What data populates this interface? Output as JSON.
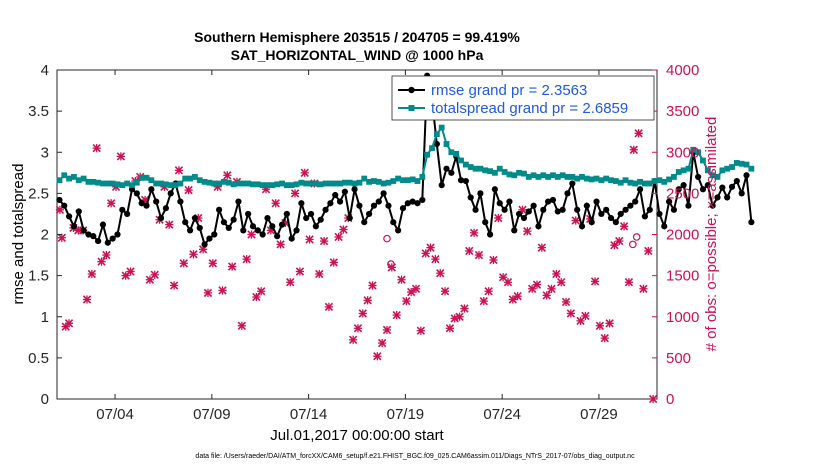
{
  "colors": {
    "rmse": "#000000",
    "totalspread": "#008b8b",
    "obs": "#cc1155",
    "legend_text": "#1f5bd6"
  },
  "chart_data": {
    "type": "line",
    "title_line1": "Southern Hemisphere 203515 / 204705 = 99.419%",
    "title_line2": "SAT_HORIZONTAL_WIND @ 1000 hPa",
    "xlabel": "Jul.01,2017 00:00:00 start",
    "ylabel_left": "rmse and totalspread",
    "ylabel_right": "# of obs: o=possible; ×=assimilated",
    "footnote": "data file: /Users/raeder/DAI/ATM_forcXX/CAM6_setup/f.e21.FHIST_BGC.f09_025.CAM6assim.011/Diags_NTrS_2017-07/obs_diag_output.nc",
    "x_range_days": [
      0,
      31
    ],
    "ylim_left": [
      0,
      4
    ],
    "ylim_right": [
      0,
      4000
    ],
    "x_ticks": [
      {
        "day": 3,
        "label": "07/04"
      },
      {
        "day": 8,
        "label": "07/09"
      },
      {
        "day": 13,
        "label": "07/14"
      },
      {
        "day": 18,
        "label": "07/19"
      },
      {
        "day": 23,
        "label": "07/24"
      },
      {
        "day": 28,
        "label": "07/29"
      }
    ],
    "y_ticks_left": [
      "0",
      "0.5",
      "1",
      "1.5",
      "2",
      "2.5",
      "3",
      "3.5",
      "4"
    ],
    "y_ticks_right": [
      "0",
      "500",
      "1000",
      "1500",
      "2000",
      "2500",
      "3000",
      "3500",
      "4000"
    ],
    "legend": [
      {
        "key": "rmse",
        "label": "rmse grand pr = 2.3563"
      },
      {
        "key": "totalspread",
        "label": "totalspread grand pr = 2.6859"
      }
    ],
    "series": [
      {
        "name": "rmse",
        "step_days": 0.25,
        "start_day": 0.125,
        "values": [
          2.42,
          2.35,
          2.22,
          2.1,
          2.28,
          2.05,
          2.0,
          1.98,
          1.92,
          2.12,
          1.9,
          1.95,
          2.0,
          2.3,
          2.25,
          2.55,
          2.5,
          2.38,
          2.35,
          2.55,
          2.4,
          2.2,
          2.32,
          2.5,
          2.62,
          2.4,
          2.15,
          2.05,
          2.2,
          2.08,
          1.88,
          1.95,
          2.0,
          2.3,
          2.15,
          2.08,
          2.18,
          2.4,
          2.05,
          2.25,
          2.1,
          2.05,
          2.0,
          2.2,
          2.1,
          1.98,
          2.12,
          2.25,
          1.95,
          2.05,
          2.38,
          2.2,
          2.25,
          2.1,
          2.18,
          2.3,
          2.38,
          2.48,
          2.4,
          2.52,
          2.2,
          2.55,
          2.35,
          2.15,
          2.25,
          2.35,
          2.4,
          2.5,
          2.35,
          2.15,
          2.05,
          2.32,
          2.38,
          2.4,
          2.38,
          2.42,
          3.93,
          3.65,
          3.1,
          2.6,
          2.8,
          2.75,
          2.95,
          2.66,
          2.65,
          2.45,
          2.3,
          2.5,
          2.15,
          2.0,
          2.55,
          2.38,
          2.3,
          2.4,
          2.05,
          2.25,
          2.2,
          2.28,
          2.35,
          2.1,
          2.3,
          2.4,
          2.42,
          2.28,
          2.3,
          2.5,
          2.62,
          2.3,
          2.1,
          2.35,
          2.15,
          2.4,
          2.25,
          2.3,
          2.2,
          2.15,
          2.25,
          2.3,
          2.35,
          2.4,
          2.55,
          2.22,
          2.3,
          2.65,
          2.25,
          2.1,
          2.4,
          2.3,
          2.55,
          2.6,
          2.35,
          3.0,
          2.7,
          2.55,
          2.6,
          2.35,
          2.45,
          2.57,
          2.45,
          2.58,
          2.65,
          2.5,
          2.72,
          2.15
        ]
      },
      {
        "name": "totalspread",
        "step_days": 0.25,
        "start_day": 0.125,
        "values": [
          2.66,
          2.72,
          2.68,
          2.7,
          2.66,
          2.68,
          2.64,
          2.64,
          2.63,
          2.62,
          2.62,
          2.62,
          2.61,
          2.6,
          2.62,
          2.6,
          2.63,
          2.69,
          2.69,
          2.66,
          2.62,
          2.62,
          2.61,
          2.6,
          2.6,
          2.62,
          2.68,
          2.68,
          2.7,
          2.66,
          2.64,
          2.63,
          2.62,
          2.62,
          2.64,
          2.63,
          2.61,
          2.62,
          2.62,
          2.62,
          2.61,
          2.61,
          2.6,
          2.6,
          2.6,
          2.61,
          2.62,
          2.6,
          2.6,
          2.61,
          2.63,
          2.62,
          2.62,
          2.62,
          2.61,
          2.62,
          2.62,
          2.62,
          2.62,
          2.63,
          2.63,
          2.62,
          2.63,
          2.68,
          2.64,
          2.65,
          2.64,
          2.62,
          2.63,
          2.65,
          2.68,
          2.66,
          2.66,
          2.67,
          2.65,
          2.7,
          2.97,
          3.05,
          3.22,
          3.3,
          3.1,
          3.0,
          2.98,
          2.9,
          2.85,
          2.82,
          2.8,
          2.8,
          2.78,
          2.77,
          2.75,
          2.8,
          2.76,
          2.73,
          2.72,
          2.75,
          2.74,
          2.7,
          2.72,
          2.7,
          2.72,
          2.7,
          2.72,
          2.7,
          2.72,
          2.7,
          2.7,
          2.68,
          2.7,
          2.68,
          2.67,
          2.68,
          2.66,
          2.68,
          2.66,
          2.65,
          2.63,
          2.66,
          2.63,
          2.62,
          2.64,
          2.62,
          2.62,
          2.65,
          2.66,
          2.64,
          2.67,
          2.7,
          2.76,
          2.78,
          2.8,
          3.03,
          3.0,
          2.9,
          2.78,
          2.72,
          2.7,
          2.78,
          2.8,
          2.82,
          2.87,
          2.86,
          2.85,
          2.8
        ]
      }
    ],
    "obs_assimilated": [
      [
        0.15,
        2300
      ],
      [
        0.25,
        1960
      ],
      [
        0.45,
        880
      ],
      [
        0.62,
        920
      ],
      [
        0.85,
        2080
      ],
      [
        1.1,
        2050
      ],
      [
        1.35,
        2050
      ],
      [
        1.55,
        1210
      ],
      [
        1.8,
        1520
      ],
      [
        2.05,
        3050
      ],
      [
        2.3,
        1670
      ],
      [
        2.55,
        1750
      ],
      [
        2.8,
        2380
      ],
      [
        3.05,
        2580
      ],
      [
        3.3,
        2950
      ],
      [
        3.55,
        1500
      ],
      [
        3.8,
        1550
      ],
      [
        4.05,
        2650
      ],
      [
        4.3,
        2700
      ],
      [
        4.55,
        2420
      ],
      [
        4.8,
        1450
      ],
      [
        5.05,
        1510
      ],
      [
        5.3,
        2180
      ],
      [
        5.55,
        2580
      ],
      [
        5.8,
        2120
      ],
      [
        6.05,
        1380
      ],
      [
        6.3,
        2780
      ],
      [
        6.55,
        1650
      ],
      [
        6.8,
        2540
      ],
      [
        7.05,
        1760
      ],
      [
        7.3,
        2200
      ],
      [
        7.55,
        1820
      ],
      [
        7.8,
        1290
      ],
      [
        8.05,
        1650
      ],
      [
        8.3,
        2580
      ],
      [
        8.55,
        1320
      ],
      [
        8.8,
        2720
      ],
      [
        9.05,
        1610
      ],
      [
        9.3,
        2640
      ],
      [
        9.55,
        890
      ],
      [
        9.8,
        1700
      ],
      [
        10.05,
        2000
      ],
      [
        10.3,
        1240
      ],
      [
        10.55,
        1310
      ],
      [
        10.8,
        2550
      ],
      [
        11.05,
        2050
      ],
      [
        11.3,
        2380
      ],
      [
        11.55,
        1880
      ],
      [
        11.8,
        2140
      ],
      [
        12.05,
        1420
      ],
      [
        12.3,
        2500
      ],
      [
        12.55,
        1550
      ],
      [
        12.8,
        2750
      ],
      [
        13.05,
        1940
      ],
      [
        13.3,
        2620
      ],
      [
        13.55,
        1520
      ],
      [
        13.8,
        1920
      ],
      [
        14.05,
        1120
      ],
      [
        14.3,
        1660
      ],
      [
        14.55,
        1970
      ],
      [
        14.8,
        2060
      ],
      [
        15.05,
        2200
      ],
      [
        15.3,
        720
      ],
      [
        15.55,
        860
      ],
      [
        15.8,
        1040
      ],
      [
        16.05,
        1200
      ],
      [
        16.3,
        1380
      ],
      [
        16.55,
        520
      ],
      [
        16.8,
        680
      ],
      [
        17.05,
        840
      ],
      [
        17.3,
        1600
      ],
      [
        17.55,
        1020
      ],
      [
        17.8,
        1450
      ],
      [
        18.05,
        1190
      ],
      [
        18.3,
        1300
      ],
      [
        18.55,
        1340
      ],
      [
        18.8,
        830
      ],
      [
        19.05,
        1770
      ],
      [
        19.3,
        1840
      ],
      [
        19.55,
        1700
      ],
      [
        19.8,
        1530
      ],
      [
        20.05,
        1310
      ],
      [
        20.3,
        860
      ],
      [
        20.55,
        980
      ],
      [
        20.8,
        1000
      ],
      [
        21.05,
        1100
      ],
      [
        21.3,
        1800
      ],
      [
        21.55,
        2020
      ],
      [
        21.8,
        1750
      ],
      [
        22.05,
        1190
      ],
      [
        22.3,
        1310
      ],
      [
        22.55,
        1690
      ],
      [
        22.8,
        2200
      ],
      [
        23.05,
        1480
      ],
      [
        23.3,
        1420
      ],
      [
        23.55,
        1210
      ],
      [
        23.8,
        1250
      ],
      [
        24.05,
        2300
      ],
      [
        24.3,
        2040
      ],
      [
        24.55,
        1340
      ],
      [
        24.8,
        1390
      ],
      [
        25.05,
        1840
      ],
      [
        25.3,
        1260
      ],
      [
        25.55,
        1340
      ],
      [
        25.8,
        1520
      ],
      [
        26.05,
        1420
      ],
      [
        26.3,
        1180
      ],
      [
        26.55,
        1040
      ],
      [
        26.8,
        2170
      ],
      [
        27.05,
        950
      ],
      [
        27.3,
        1010
      ],
      [
        27.55,
        2190
      ],
      [
        27.8,
        1430
      ],
      [
        28.05,
        890
      ],
      [
        28.3,
        740
      ],
      [
        28.55,
        920
      ],
      [
        28.8,
        1870
      ],
      [
        29.05,
        1920
      ],
      [
        29.3,
        2100
      ],
      [
        29.55,
        1420
      ],
      [
        29.8,
        3030
      ],
      [
        30.05,
        3230
      ],
      [
        30.3,
        1340
      ],
      [
        30.55,
        1800
      ],
      [
        30.8,
        0
      ]
    ],
    "obs_possible": [
      [
        17.05,
        1950
      ],
      [
        17.25,
        1640
      ],
      [
        29.95,
        1970
      ],
      [
        29.75,
        1880
      ]
    ]
  }
}
